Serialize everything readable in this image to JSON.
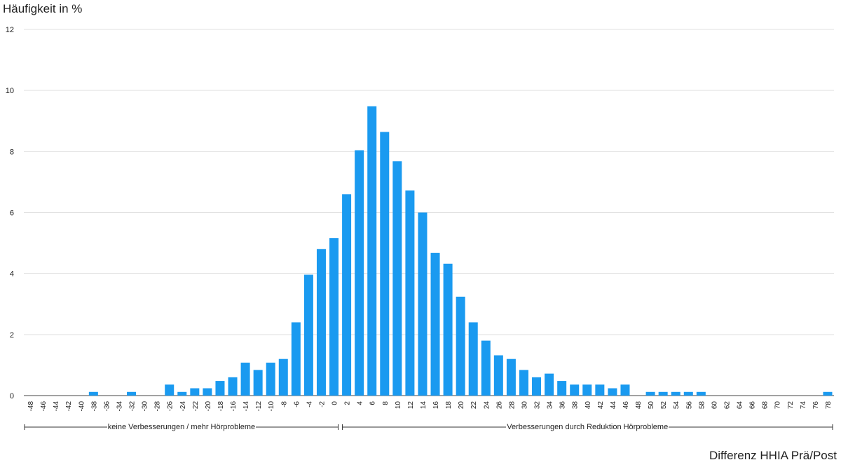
{
  "chart_data": {
    "type": "bar",
    "ylabel": "Häufigkeit in %",
    "xlabel": "Differenz HHIA Prä/Post",
    "ylim": [
      0,
      12
    ],
    "yticks": [
      0,
      2,
      4,
      6,
      8,
      10,
      12
    ],
    "grid": true,
    "bar_color": "#1a9af0",
    "categories": [
      "-48",
      "-46",
      "-44",
      "-42",
      "-40",
      "-38",
      "-36",
      "-34",
      "-32",
      "-30",
      "-28",
      "-26",
      "-24",
      "-22",
      "-20",
      "-18",
      "-16",
      "-14",
      "-12",
      "-10",
      "-8",
      "-6",
      "-4",
      "-2",
      "0",
      "2",
      "4",
      "6",
      "8",
      "10",
      "12",
      "14",
      "16",
      "18",
      "20",
      "22",
      "24",
      "26",
      "28",
      "30",
      "32",
      "34",
      "36",
      "38",
      "40",
      "42",
      "44",
      "46",
      "48",
      "50",
      "52",
      "54",
      "56",
      "58",
      "60",
      "62",
      "64",
      "66",
      "68",
      "70",
      "72",
      "74",
      "76",
      "78"
    ],
    "values": [
      0,
      0,
      0,
      0,
      0,
      0.12,
      0,
      0,
      0.12,
      0,
      0,
      0.36,
      0.12,
      0.24,
      0.24,
      0.48,
      0.6,
      1.08,
      0.84,
      1.08,
      1.2,
      2.4,
      3.96,
      4.8,
      5.16,
      6.6,
      8.04,
      9.48,
      8.64,
      7.68,
      6.72,
      6.0,
      4.68,
      4.32,
      3.24,
      2.4,
      1.8,
      1.32,
      1.2,
      0.84,
      0.6,
      0.72,
      0.48,
      0.36,
      0.36,
      0.36,
      0.24,
      0.36,
      0,
      0.12,
      0.12,
      0.12,
      0.12,
      0.12,
      0,
      0,
      0,
      0,
      0,
      0,
      0,
      0,
      0,
      0.12
    ],
    "annotations": [
      {
        "text": "keine Verbesserungen / mehr Hörprobleme",
        "from": "-48",
        "to": "0"
      },
      {
        "text": "Verbesserungen durch Reduktion Hörprobleme",
        "from": "2",
        "to": "78"
      }
    ]
  }
}
